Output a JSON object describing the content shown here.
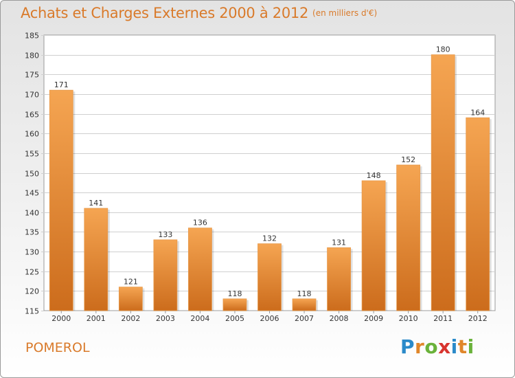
{
  "header": {
    "title": "Achats et Charges Externes 2000 à 2012",
    "unit": "(en milliers d'€)"
  },
  "footer": {
    "commune": "POMEROL",
    "logo_text": "Proxiti",
    "logo_letters": [
      {
        "ch": "P",
        "color": "#2a8ac9"
      },
      {
        "ch": "r",
        "color": "#e0862a"
      },
      {
        "ch": "o",
        "color": "#6ab23a"
      },
      {
        "ch": "x",
        "color": "#d8342f"
      },
      {
        "ch": "i",
        "color": "#2a8ac9"
      },
      {
        "ch": "t",
        "color": "#e0862a"
      },
      {
        "ch": "i",
        "color": "#6ab23a"
      }
    ]
  },
  "colors": {
    "bar_top": "#f5a552",
    "bar_bottom": "#cc6c1c",
    "grid": "#cfcfcf",
    "axis": "#999999",
    "text": "#333333"
  },
  "chart_data": {
    "type": "bar",
    "categories": [
      "2000",
      "2001",
      "2002",
      "2003",
      "2004",
      "2005",
      "2006",
      "2007",
      "2008",
      "2009",
      "2010",
      "2011",
      "2012"
    ],
    "values": [
      171,
      141,
      121,
      133,
      136,
      118,
      132,
      118,
      131,
      148,
      152,
      180,
      164
    ],
    "ylim": [
      115,
      185
    ],
    "yticks": [
      115,
      120,
      125,
      130,
      135,
      140,
      145,
      150,
      155,
      160,
      165,
      170,
      175,
      180,
      185
    ],
    "grid": true,
    "xlabel": "",
    "ylabel": ""
  }
}
